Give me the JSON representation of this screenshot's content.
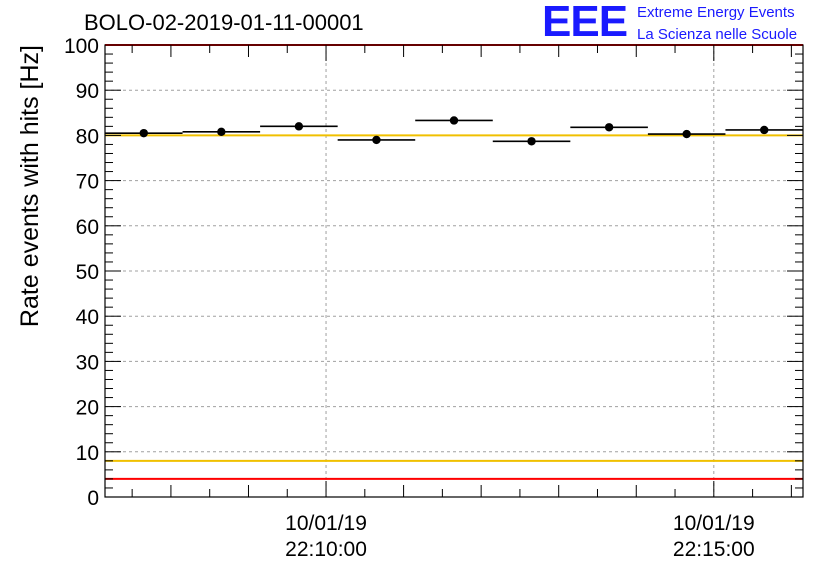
{
  "title": "BOLO-02-2019-01-11-00001",
  "logo": {
    "mark": "EEE",
    "line1": "Extreme Energy Events",
    "line2": "La Scienza nelle Scuole",
    "color": "#1a1aff"
  },
  "chart_data": {
    "type": "scatter",
    "title": "BOLO-02-2019-01-11-00001",
    "xlabel": "",
    "ylabel": "Rate events with hits [Hz]",
    "ylim": [
      0,
      100
    ],
    "yticks": [
      0,
      10,
      20,
      30,
      40,
      50,
      60,
      70,
      80,
      90,
      100
    ],
    "xlim": [
      0,
      9
    ],
    "x_major_ticks": [
      {
        "x": 2.85,
        "date": "10/01/19",
        "time": "22:10:00"
      },
      {
        "x": 7.85,
        "date": "10/01/19",
        "time": "22:15:00"
      }
    ],
    "grid": true,
    "points": [
      {
        "x": 0.5,
        "y": 80.5,
        "xerr": 0.5,
        "yerr": 0.6
      },
      {
        "x": 1.5,
        "y": 80.8,
        "xerr": 0.5,
        "yerr": 0.6
      },
      {
        "x": 2.5,
        "y": 82.0,
        "xerr": 0.5,
        "yerr": 0.6
      },
      {
        "x": 3.5,
        "y": 79.0,
        "xerr": 0.5,
        "yerr": 0.6
      },
      {
        "x": 4.5,
        "y": 83.3,
        "xerr": 0.5,
        "yerr": 0.6
      },
      {
        "x": 5.5,
        "y": 78.7,
        "xerr": 0.5,
        "yerr": 0.6
      },
      {
        "x": 6.5,
        "y": 81.8,
        "xerr": 0.5,
        "yerr": 0.6
      },
      {
        "x": 7.5,
        "y": 80.3,
        "xerr": 0.5,
        "yerr": 0.6
      },
      {
        "x": 8.5,
        "y": 81.2,
        "xerr": 0.5,
        "yerr": 0.6
      }
    ],
    "reference_lines": [
      {
        "y": 100,
        "color": "#ff0000"
      },
      {
        "y": 80,
        "color": "#f0c000"
      },
      {
        "y": 8,
        "color": "#f0c000"
      },
      {
        "y": 4,
        "color": "#ff0000"
      }
    ]
  }
}
